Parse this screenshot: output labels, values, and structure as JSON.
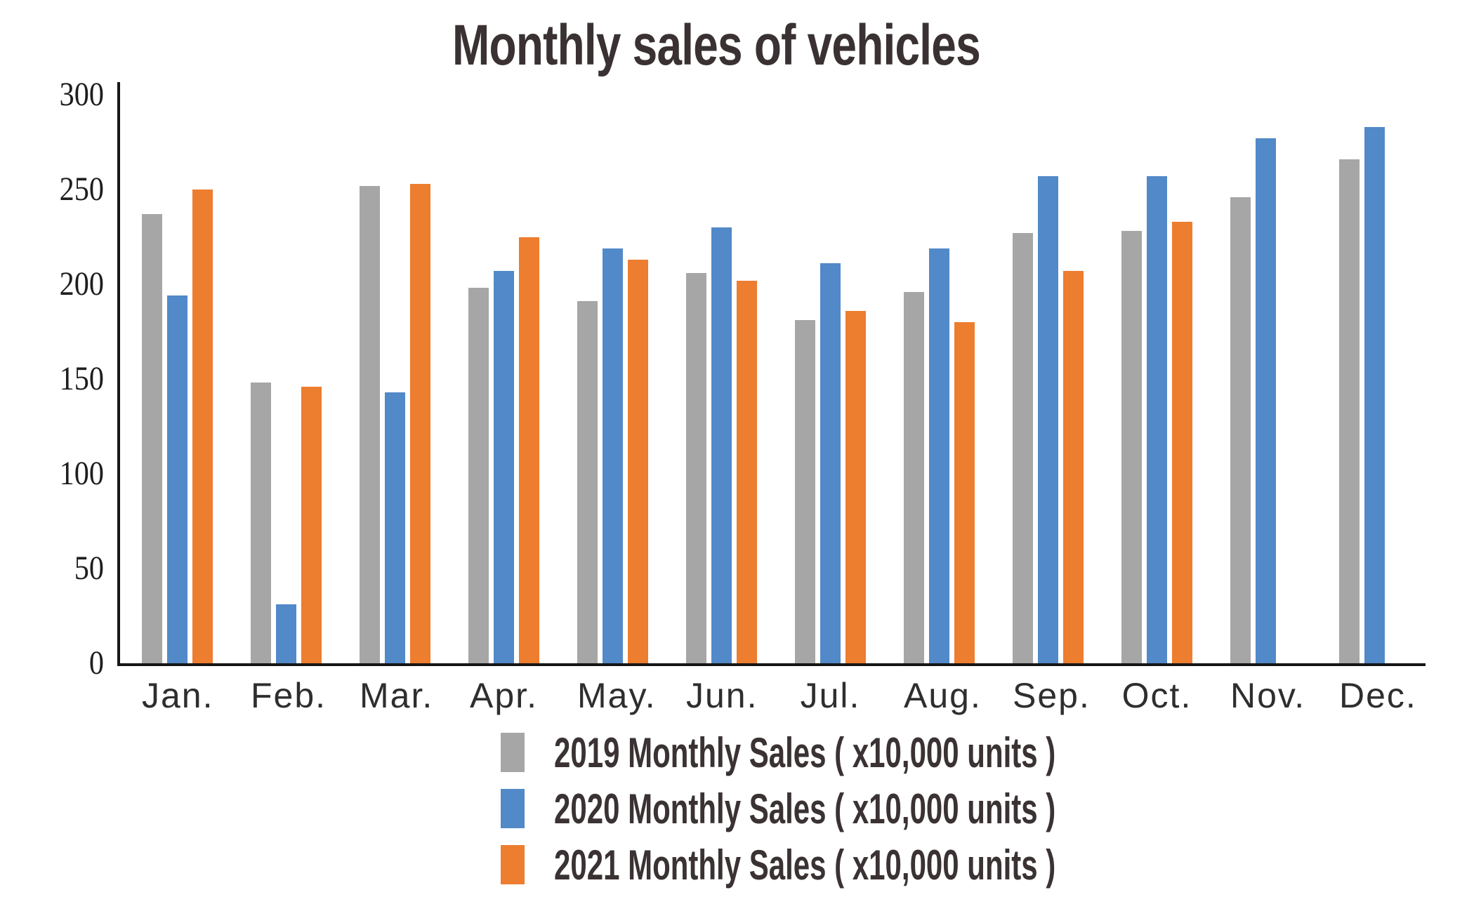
{
  "title": "Monthly sales of vehicles",
  "chart_data": {
    "type": "bar",
    "title": "Monthly sales of vehicles",
    "categories": [
      "Jan.",
      "Feb.",
      "Mar.",
      "Apr.",
      "May.",
      "Jun.",
      "Jul.",
      "Aug.",
      "Sep.",
      "Oct.",
      "Nov.",
      "Dec."
    ],
    "series": [
      {
        "name": "2019 Monthly Sales ( x10,000 units )",
        "color": "#a6a6a6",
        "values": [
          237,
          148,
          252,
          198,
          191,
          206,
          181,
          196,
          227,
          228,
          246,
          266
        ]
      },
      {
        "name": "2020 Monthly Sales ( x10,000 units )",
        "color": "#5289c8",
        "values": [
          194,
          31,
          143,
          207,
          219,
          230,
          211,
          219,
          257,
          257,
          277,
          283
        ]
      },
      {
        "name": "2021 Monthly Sales ( x10,000 units )",
        "color": "#ed7d2f",
        "values": [
          250,
          146,
          253,
          225,
          213,
          202,
          186,
          180,
          207,
          233,
          null,
          null
        ]
      }
    ],
    "xlabel": "",
    "ylabel": "",
    "ylim": [
      0,
      300
    ],
    "yticks": [
      300,
      250,
      200,
      150,
      100,
      50,
      0
    ],
    "grid": false,
    "legend_position": "bottom-center",
    "axis_color": "#161616",
    "background": "#ffffff"
  }
}
